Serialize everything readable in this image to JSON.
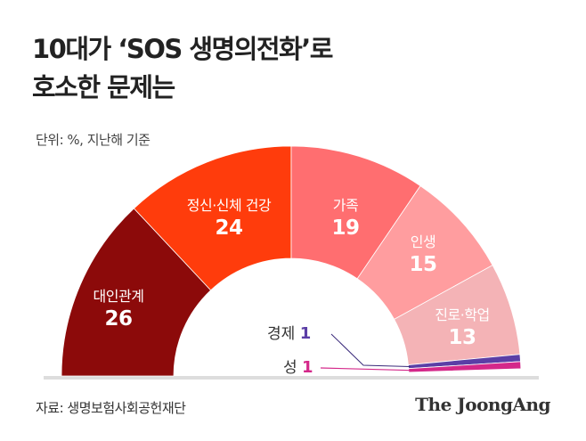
{
  "title_line1": "10대가 ‘SOS 생명의전화’로",
  "title_line2": "호소한 문제는",
  "unit": "단위: %, 지난해 기준",
  "source": "자료: 생명보험사회공헌재단",
  "logo": "The JoongAng",
  "chart_data": {
    "type": "pie",
    "subtype": "semi-donut",
    "categories": [
      "대인관계",
      "정신·신체 건강",
      "가족",
      "인생",
      "진로·학업",
      "경제",
      "성"
    ],
    "values": [
      26,
      24,
      19,
      15,
      13,
      1,
      1
    ],
    "colors": [
      "#8c0a0a",
      "#ff3c0c",
      "#ff6e70",
      "#ff9d9f",
      "#f4b3b6",
      "#5b3ea6",
      "#d4288a"
    ],
    "labels": [
      {
        "name": "대인관계",
        "value": "26"
      },
      {
        "name": "정신·신체 건강",
        "value": "24"
      },
      {
        "name": "가족",
        "value": "19"
      },
      {
        "name": "인생",
        "value": "15"
      },
      {
        "name": "진로·학업",
        "value": "13"
      },
      {
        "name": "경제",
        "value": "1"
      },
      {
        "name": "성",
        "value": "1"
      }
    ]
  }
}
